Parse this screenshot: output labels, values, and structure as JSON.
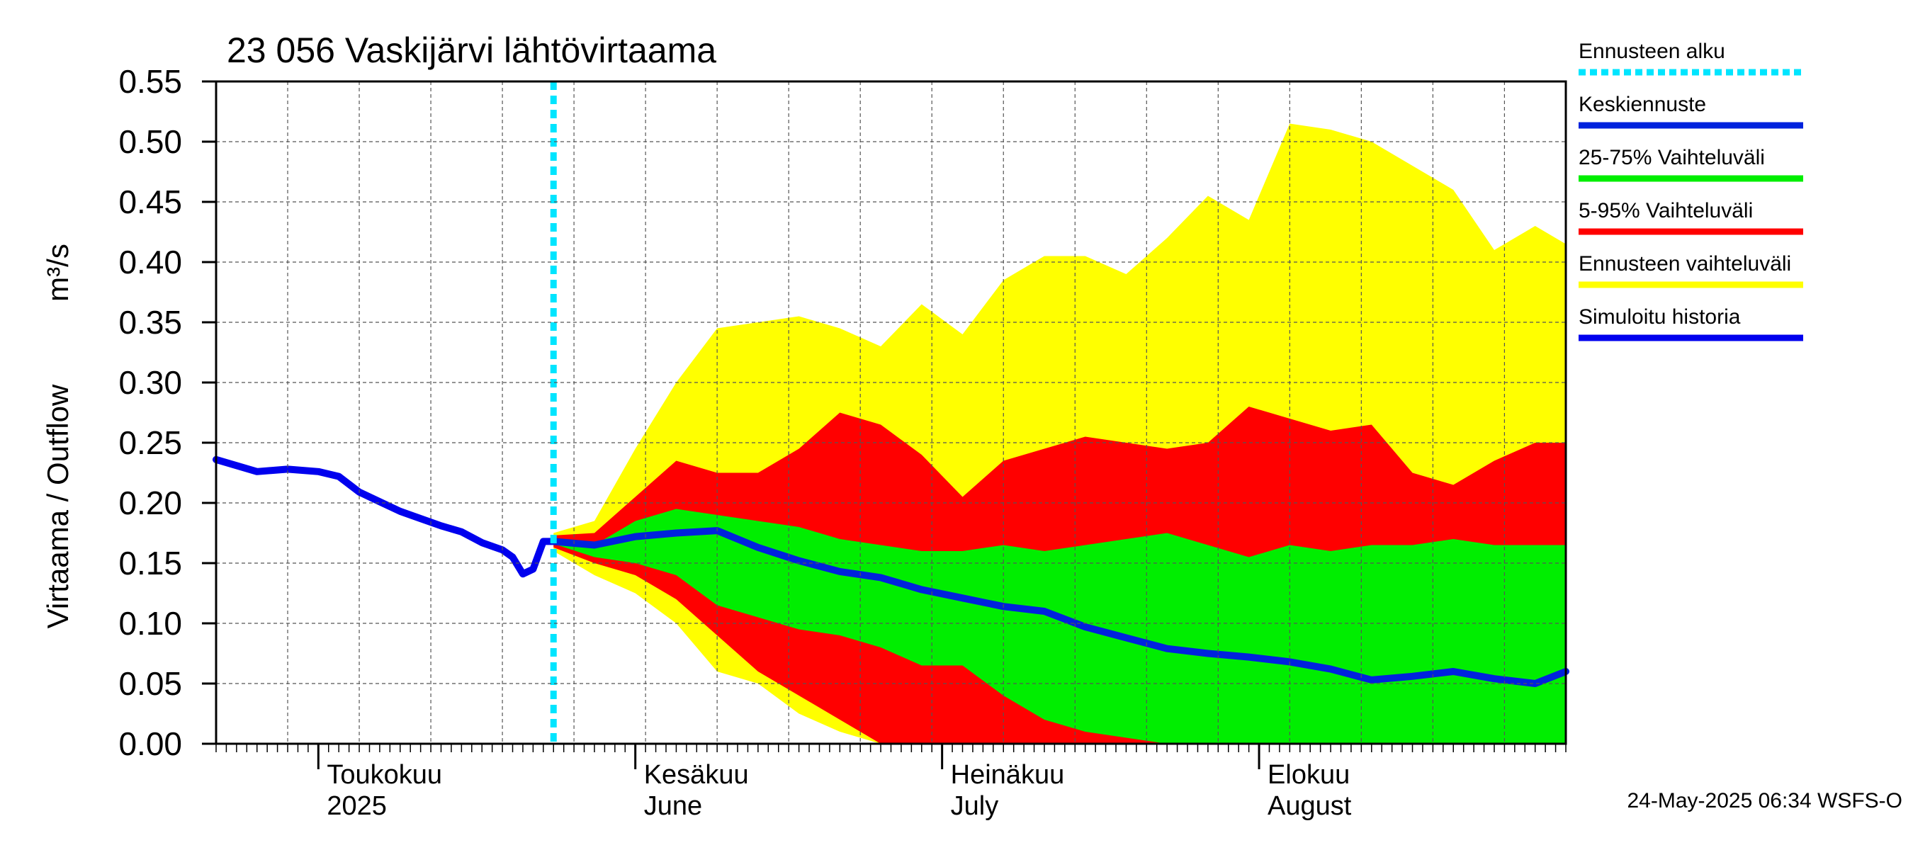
{
  "chart_data": {
    "type": "area",
    "title": "23 056 Vaskijärvi lähtövirtaama",
    "ylabel": "Virtaama / Outflow",
    "yunit": "m³/s",
    "ylim": [
      0,
      0.55
    ],
    "yticks": [
      "0.00",
      "0.05",
      "0.10",
      "0.15",
      "0.20",
      "0.25",
      "0.30",
      "0.35",
      "0.40",
      "0.45",
      "0.50",
      "0.55"
    ],
    "grid": true,
    "legend_position": "right",
    "x_range": [
      "2025-04-21",
      "2025-08-31"
    ],
    "forecast_start": "2025-05-24",
    "month_labels": [
      {
        "date": "2025-05-01",
        "fi": "Toukokuu",
        "en": "2025"
      },
      {
        "date": "2025-06-01",
        "fi": "Kesäkuu",
        "en": "June"
      },
      {
        "date": "2025-07-01",
        "fi": "Heinäkuu",
        "en": "July"
      },
      {
        "date": "2025-08-01",
        "fi": "Elokuu",
        "en": "August"
      }
    ],
    "legend": [
      {
        "label": "Ennusteen alku",
        "color": "#00e5ff",
        "style": "dotted"
      },
      {
        "label": "Keskiennuste",
        "color": "#0022dd",
        "style": "solid"
      },
      {
        "label": "25-75% Vaihteluväli",
        "color": "#00ee00",
        "style": "solid"
      },
      {
        "label": "5-95% Vaihteluväli",
        "color": "#ff0000",
        "style": "solid"
      },
      {
        "label": "Ennusteen vaihteluväli",
        "color": "#ffff00",
        "style": "solid"
      },
      {
        "label": "Simuloitu historia",
        "color": "#0000ee",
        "style": "solid"
      }
    ],
    "colors": {
      "forecast_start": "#00e5ff",
      "median": "#0022dd",
      "band_25_75": "#00ee00",
      "band_5_95": "#ff0000",
      "band_full": "#ffff00",
      "history": "#0000ee"
    },
    "history": {
      "dates": [
        "2025-04-21",
        "2025-04-23",
        "2025-04-25",
        "2025-04-28",
        "2025-05-01",
        "2025-05-03",
        "2025-05-05",
        "2025-05-07",
        "2025-05-09",
        "2025-05-11",
        "2025-05-13",
        "2025-05-15",
        "2025-05-17",
        "2025-05-19",
        "2025-05-20",
        "2025-05-21",
        "2025-05-22",
        "2025-05-23",
        "2025-05-24"
      ],
      "values": [
        0.236,
        0.231,
        0.226,
        0.228,
        0.226,
        0.222,
        0.209,
        0.201,
        0.193,
        0.187,
        0.181,
        0.176,
        0.167,
        0.161,
        0.155,
        0.141,
        0.145,
        0.168,
        0.168
      ]
    },
    "forecast": {
      "dates": [
        "2025-05-24",
        "2025-05-28",
        "2025-06-01",
        "2025-06-05",
        "2025-06-09",
        "2025-06-13",
        "2025-06-17",
        "2025-06-21",
        "2025-06-25",
        "2025-06-29",
        "2025-07-03",
        "2025-07-07",
        "2025-07-11",
        "2025-07-15",
        "2025-07-19",
        "2025-07-23",
        "2025-07-27",
        "2025-07-31",
        "2025-08-04",
        "2025-08-08",
        "2025-08-12",
        "2025-08-16",
        "2025-08-20",
        "2025-08-24",
        "2025-08-28",
        "2025-08-31"
      ],
      "max": [
        0.175,
        0.185,
        0.245,
        0.3,
        0.345,
        0.35,
        0.355,
        0.345,
        0.33,
        0.365,
        0.34,
        0.385,
        0.405,
        0.405,
        0.39,
        0.42,
        0.455,
        0.435,
        0.515,
        0.51,
        0.5,
        0.48,
        0.46,
        0.41,
        0.43,
        0.415
      ],
      "p95": [
        0.173,
        0.175,
        0.205,
        0.235,
        0.225,
        0.225,
        0.245,
        0.275,
        0.265,
        0.24,
        0.205,
        0.235,
        0.245,
        0.255,
        0.25,
        0.245,
        0.25,
        0.28,
        0.27,
        0.26,
        0.265,
        0.225,
        0.215,
        0.235,
        0.25,
        0.25
      ],
      "p75": [
        0.17,
        0.165,
        0.185,
        0.195,
        0.19,
        0.185,
        0.18,
        0.17,
        0.165,
        0.16,
        0.16,
        0.165,
        0.16,
        0.165,
        0.17,
        0.175,
        0.165,
        0.155,
        0.165,
        0.16,
        0.165,
        0.165,
        0.17,
        0.165,
        0.165,
        0.165
      ],
      "median": [
        0.168,
        0.165,
        0.172,
        0.175,
        0.177,
        0.163,
        0.152,
        0.143,
        0.138,
        0.128,
        0.121,
        0.114,
        0.11,
        0.097,
        0.088,
        0.079,
        0.075,
        0.072,
        0.068,
        0.062,
        0.053,
        0.056,
        0.06,
        0.054,
        0.05,
        0.06
      ],
      "p25": [
        0.166,
        0.155,
        0.15,
        0.14,
        0.115,
        0.105,
        0.095,
        0.09,
        0.08,
        0.065,
        0.065,
        0.04,
        0.02,
        0.01,
        0.005,
        0.0,
        0.0,
        0.0,
        0.0,
        0.0,
        0.0,
        0.0,
        0.0,
        0.0,
        0.0,
        0.0
      ],
      "p5": [
        0.163,
        0.15,
        0.14,
        0.12,
        0.09,
        0.06,
        0.04,
        0.02,
        0.0,
        0.0,
        0.0,
        0.0,
        0.0,
        0.0,
        0.0,
        0.0,
        0.0,
        0.0,
        0.0,
        0.0,
        0.0,
        0.0,
        0.0,
        0.0,
        0.0,
        0.0
      ],
      "min": [
        0.16,
        0.14,
        0.125,
        0.1,
        0.06,
        0.05,
        0.025,
        0.01,
        0.0,
        0.0,
        0.0,
        0.0,
        0.0,
        0.0,
        0.0,
        0.0,
        0.0,
        0.0,
        0.0,
        0.0,
        0.0,
        0.0,
        0.0,
        0.0,
        0.0,
        0.0
      ]
    }
  },
  "footer": "24-May-2025 06:34 WSFS-O"
}
